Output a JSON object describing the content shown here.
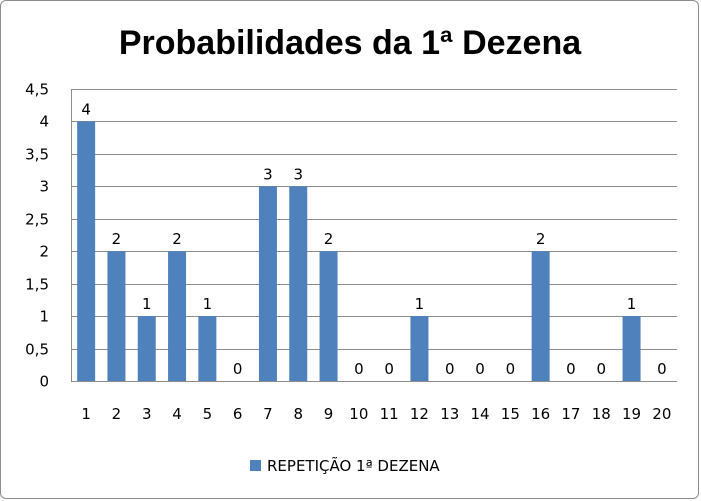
{
  "chart_data": {
    "type": "bar",
    "title": "Probabilidades da 1ª Dezena",
    "categories": [
      "1",
      "2",
      "3",
      "4",
      "5",
      "6",
      "7",
      "8",
      "9",
      "10",
      "11",
      "12",
      "13",
      "14",
      "15",
      "16",
      "17",
      "18",
      "19",
      "20"
    ],
    "series": [
      {
        "name": "REPETIÇÃO 1ª DEZENA",
        "values": [
          4,
          2,
          1,
          2,
          1,
          0,
          3,
          3,
          2,
          0,
          0,
          1,
          0,
          0,
          0,
          2,
          0,
          0,
          1,
          0
        ],
        "data_labels": [
          "4",
          "2",
          "1",
          "2",
          "1",
          "0",
          "3",
          "3",
          "2",
          "0",
          "0",
          "1",
          "0",
          "0",
          "0",
          "2",
          "0",
          "0",
          "1",
          "0"
        ]
      }
    ],
    "ylim": [
      0,
      4.5
    ],
    "y_ticks": [
      0,
      0.5,
      1,
      1.5,
      2,
      2.5,
      3,
      3.5,
      4,
      4.5
    ],
    "y_tick_labels": [
      "0",
      "0,5",
      "1",
      "1,5",
      "2",
      "2,5",
      "3",
      "3,5",
      "4",
      "4,5"
    ],
    "grid": true,
    "legend_position": "bottom",
    "bar_color": "#4f81bd",
    "grid_color": "#8c8c8c"
  }
}
